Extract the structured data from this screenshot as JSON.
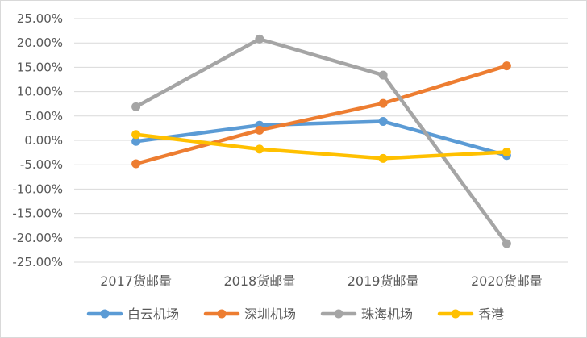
{
  "chart_data": {
    "type": "line",
    "title": "",
    "xlabel": "",
    "ylabel": "",
    "categories": [
      "2017货邮量",
      "2018货邮量",
      "2019货邮量",
      "2020货邮量"
    ],
    "ylim": [
      -25,
      25
    ],
    "ytick_step": 5,
    "y_ticks": [
      "25.00%",
      "20.00%",
      "15.00%",
      "10.00%",
      "5.00%",
      "0.00%",
      "-5.00%",
      "-10.00%",
      "-15.00%",
      "-20.00%",
      "-25.00%"
    ],
    "grid": true,
    "legend_position": "bottom",
    "series": [
      {
        "name": "白云机场",
        "color": "#5b9bd5",
        "values": [
          -0.2,
          3.1,
          3.9,
          -3.1
        ]
      },
      {
        "name": "深圳机场",
        "color": "#ed7d31",
        "values": [
          -4.8,
          2.1,
          7.6,
          15.3
        ]
      },
      {
        "name": "珠海机场",
        "color": "#a5a5a5",
        "values": [
          6.9,
          20.8,
          13.4,
          -21.2
        ]
      },
      {
        "name": "香港",
        "color": "#ffc000",
        "values": [
          1.2,
          -1.8,
          -3.7,
          -2.4
        ]
      }
    ]
  }
}
